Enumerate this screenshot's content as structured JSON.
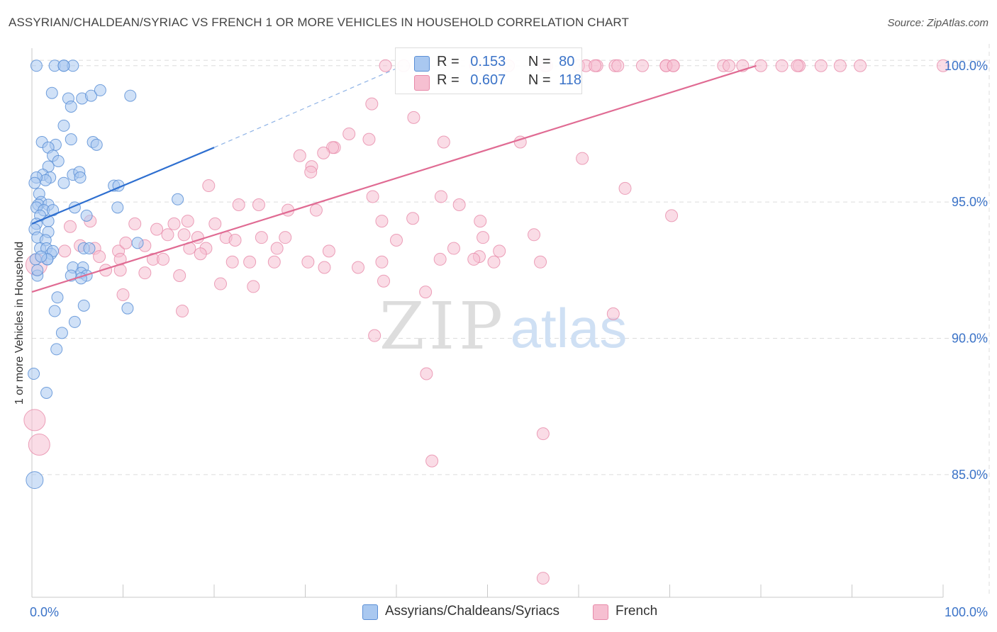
{
  "title": "ASSYRIAN/CHALDEAN/SYRIAC VS FRENCH 1 OR MORE VEHICLES IN HOUSEHOLD CORRELATION CHART",
  "source": "Source: ZipAtlas.com",
  "watermark": {
    "zip": "ZIP",
    "atlas": "atlas"
  },
  "legend": {
    "r_label": "R =",
    "n_label": "N =",
    "series1": {
      "r": "0.153",
      "n": "80"
    },
    "series2": {
      "r": "0.607",
      "n": "118"
    }
  },
  "bottom_legend": {
    "series1": "Assyrians/Chaldeans/Syriacs",
    "series2": "French"
  },
  "colors": {
    "series1_fill": "#a9c8f0",
    "series1_stroke": "#5b8fd6",
    "series1_line": "#2e6fd0",
    "series2_fill": "#f6bfd1",
    "series2_stroke": "#e78aa9",
    "series2_line": "#e06b93",
    "tick_label": "#3b73c8"
  },
  "chart_data": {
    "type": "scatter",
    "title": "ASSYRIAN/CHALDEAN/SYRIAC VS FRENCH 1 OR MORE VEHICLES IN HOUSEHOLD CORRELATION CHART",
    "xlabel": "",
    "ylabel": "1 or more Vehicles in Household",
    "xlim": [
      0,
      100
    ],
    "ylim": [
      80.5,
      100.8
    ],
    "x_tick_labels": [
      "0.0%",
      "100.0%"
    ],
    "y_ticks": [
      85,
      90,
      95,
      100
    ],
    "y_tick_labels": [
      "85.0%",
      "90.0%",
      "95.0%",
      "100.0%"
    ],
    "grid": true,
    "series": [
      {
        "name": "Assyrians/Chaldeans/Syriacs",
        "r": 0.153,
        "n": 80,
        "trend": {
          "x": [
            0,
            20
          ],
          "y": [
            94.2,
            97.0
          ]
        },
        "trend_extension": {
          "x": [
            20,
            40
          ],
          "y": [
            97.0,
            99.9
          ]
        },
        "points": [
          [
            2.5,
            100
          ],
          [
            3.5,
            100
          ],
          [
            4.5,
            100
          ],
          [
            3.5,
            100
          ],
          [
            2.2,
            99.0
          ],
          [
            4.0,
            98.8
          ],
          [
            4.3,
            98.5
          ],
          [
            5.5,
            98.8
          ],
          [
            6.5,
            98.9
          ],
          [
            7.5,
            99.1
          ],
          [
            10.8,
            98.9
          ],
          [
            3.5,
            97.8
          ],
          [
            1.1,
            97.2
          ],
          [
            2.6,
            97.1
          ],
          [
            1.8,
            97.0
          ],
          [
            4.3,
            97.3
          ],
          [
            6.7,
            97.2
          ],
          [
            7.1,
            97.1
          ],
          [
            2.3,
            96.7
          ],
          [
            2.9,
            96.5
          ],
          [
            1.8,
            96.3
          ],
          [
            1.2,
            96.0
          ],
          [
            2.0,
            95.9
          ],
          [
            1.5,
            95.8
          ],
          [
            0.5,
            95.9
          ],
          [
            4.5,
            96.0
          ],
          [
            5.2,
            96.1
          ],
          [
            5.3,
            95.9
          ],
          [
            3.5,
            95.7
          ],
          [
            9.0,
            95.6
          ],
          [
            9.5,
            95.6
          ],
          [
            0.3,
            95.7
          ],
          [
            0.8,
            95.3
          ],
          [
            1.0,
            95.0
          ],
          [
            0.7,
            94.9
          ],
          [
            1.8,
            94.9
          ],
          [
            0.5,
            94.8
          ],
          [
            1.3,
            94.7
          ],
          [
            2.3,
            94.7
          ],
          [
            0.9,
            94.5
          ],
          [
            4.7,
            94.8
          ],
          [
            6.0,
            94.5
          ],
          [
            1.8,
            94.3
          ],
          [
            0.5,
            94.2
          ],
          [
            0.3,
            94.0
          ],
          [
            1.8,
            93.9
          ],
          [
            0.6,
            93.7
          ],
          [
            1.5,
            93.6
          ],
          [
            0.9,
            93.3
          ],
          [
            1.6,
            93.3
          ],
          [
            2.1,
            93.1
          ],
          [
            2.3,
            93.2
          ],
          [
            5.7,
            93.3
          ],
          [
            6.3,
            93.3
          ],
          [
            11.6,
            93.5
          ],
          [
            0.4,
            92.9
          ],
          [
            1.7,
            92.9
          ],
          [
            1.7,
            92.9
          ],
          [
            4.5,
            92.6
          ],
          [
            5.6,
            92.6
          ],
          [
            5.4,
            92.4
          ],
          [
            6.0,
            92.3
          ],
          [
            4.3,
            92.3
          ],
          [
            5.4,
            92.2
          ],
          [
            0.6,
            92.3
          ],
          [
            0.6,
            92.5
          ],
          [
            2.8,
            91.5
          ],
          [
            5.7,
            91.2
          ],
          [
            10.5,
            91.1
          ],
          [
            2.5,
            91.0
          ],
          [
            4.7,
            90.6
          ],
          [
            3.3,
            90.2
          ],
          [
            2.7,
            89.6
          ],
          [
            0.2,
            88.7
          ],
          [
            1.6,
            88.0
          ],
          [
            16.0,
            95.1
          ],
          [
            9.4,
            94.8
          ],
          [
            1.0,
            93.0
          ],
          [
            0.3,
            84.8
          ],
          [
            0.5,
            100
          ]
        ]
      },
      {
        "name": "French",
        "r": 0.607,
        "n": 118,
        "trend": {
          "x": [
            0,
            79.5
          ],
          "y": [
            91.7,
            100.0
          ]
        },
        "points": [
          [
            38.8,
            100
          ],
          [
            40.8,
            100
          ],
          [
            48.7,
            100
          ],
          [
            50.8,
            100
          ],
          [
            56.5,
            100
          ],
          [
            60.0,
            100
          ],
          [
            62.0,
            100
          ],
          [
            64.0,
            100
          ],
          [
            67.0,
            100
          ],
          [
            69.6,
            100
          ],
          [
            70.4,
            100
          ],
          [
            75.9,
            100
          ],
          [
            78.0,
            100
          ],
          [
            80.0,
            100
          ],
          [
            82.3,
            100
          ],
          [
            84.2,
            100
          ],
          [
            86.6,
            100
          ],
          [
            88.7,
            100
          ],
          [
            90.9,
            100
          ],
          [
            100,
            100
          ],
          [
            52.3,
            100
          ],
          [
            56.3,
            100
          ],
          [
            60.8,
            100
          ],
          [
            61.8,
            100
          ],
          [
            64.3,
            100
          ],
          [
            69.6,
            100
          ],
          [
            70.4,
            100
          ],
          [
            76.5,
            100
          ],
          [
            84.0,
            100
          ],
          [
            37.3,
            98.6
          ],
          [
            41.9,
            98.1
          ],
          [
            34.8,
            97.5
          ],
          [
            37.0,
            97.3
          ],
          [
            33.2,
            97.0
          ],
          [
            33.0,
            97.0
          ],
          [
            32.0,
            96.8
          ],
          [
            29.4,
            96.7
          ],
          [
            30.7,
            96.3
          ],
          [
            30.6,
            96.1
          ],
          [
            45.2,
            97.2
          ],
          [
            53.6,
            97.2
          ],
          [
            60.4,
            96.6
          ],
          [
            65.1,
            95.5
          ],
          [
            19.4,
            95.6
          ],
          [
            37.4,
            95.2
          ],
          [
            44.9,
            95.2
          ],
          [
            46.9,
            94.9
          ],
          [
            22.7,
            94.9
          ],
          [
            24.9,
            94.9
          ],
          [
            28.1,
            94.7
          ],
          [
            15.6,
            94.2
          ],
          [
            31.2,
            94.7
          ],
          [
            70.2,
            94.5
          ],
          [
            38.4,
            94.3
          ],
          [
            17.1,
            94.3
          ],
          [
            20.1,
            94.2
          ],
          [
            41.8,
            94.4
          ],
          [
            49.2,
            94.3
          ],
          [
            4.2,
            94.1
          ],
          [
            6.4,
            94.3
          ],
          [
            11.3,
            94.2
          ],
          [
            13.7,
            94.0
          ],
          [
            14.9,
            93.8
          ],
          [
            16.7,
            93.8
          ],
          [
            18.2,
            93.7
          ],
          [
            21.3,
            93.7
          ],
          [
            22.3,
            93.6
          ],
          [
            25.2,
            93.7
          ],
          [
            27.8,
            93.7
          ],
          [
            40.0,
            93.6
          ],
          [
            49.5,
            93.7
          ],
          [
            55.1,
            93.8
          ],
          [
            5.3,
            93.4
          ],
          [
            6.9,
            93.3
          ],
          [
            9.5,
            93.2
          ],
          [
            10.3,
            93.5
          ],
          [
            12.4,
            93.4
          ],
          [
            17.3,
            93.3
          ],
          [
            19.1,
            93.3
          ],
          [
            26.9,
            93.3
          ],
          [
            32.6,
            93.2
          ],
          [
            46.3,
            93.3
          ],
          [
            49.1,
            93.0
          ],
          [
            51.3,
            93.2
          ],
          [
            3.6,
            93.2
          ],
          [
            7.4,
            93.0
          ],
          [
            9.7,
            92.9
          ],
          [
            13.3,
            92.9
          ],
          [
            14.4,
            92.9
          ],
          [
            18.5,
            93.1
          ],
          [
            22.0,
            92.8
          ],
          [
            23.9,
            92.8
          ],
          [
            26.6,
            92.8
          ],
          [
            30.3,
            92.8
          ],
          [
            32.1,
            92.6
          ],
          [
            35.8,
            92.6
          ],
          [
            38.4,
            92.8
          ],
          [
            44.8,
            92.9
          ],
          [
            48.5,
            92.9
          ],
          [
            50.7,
            92.8
          ],
          [
            55.8,
            92.8
          ],
          [
            9.7,
            92.5
          ],
          [
            8.1,
            92.5
          ],
          [
            12.4,
            92.4
          ],
          [
            16.2,
            92.3
          ],
          [
            20.7,
            92.0
          ],
          [
            24.3,
            91.9
          ],
          [
            38.6,
            92.1
          ],
          [
            43.2,
            91.7
          ],
          [
            10.0,
            91.6
          ],
          [
            16.5,
            91.0
          ],
          [
            63.8,
            90.9
          ],
          [
            37.6,
            90.1
          ],
          [
            43.3,
            88.7
          ],
          [
            56.1,
            86.5
          ],
          [
            43.9,
            85.5
          ],
          [
            0.5,
            92.7
          ],
          [
            0.3,
            87.0
          ],
          [
            0.8,
            86.1
          ],
          [
            56.1,
            81.2
          ]
        ]
      }
    ]
  }
}
